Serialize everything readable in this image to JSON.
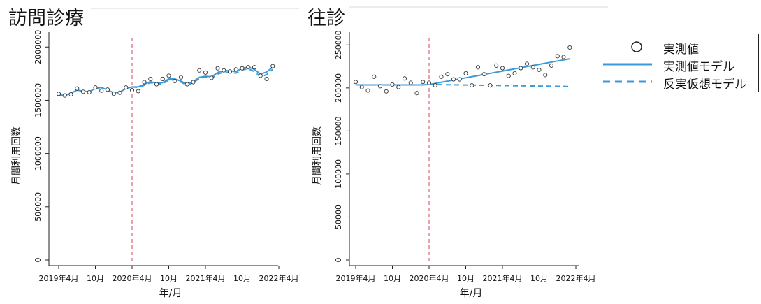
{
  "chart_data": [
    {
      "type": "scatter",
      "title": "訪問診療",
      "xlabel": "年/月",
      "ylabel": "月間利用回数",
      "x_tick_labels": [
        "2019年4月",
        "10月",
        "2020年4月",
        "10月",
        "2021年4月",
        "10月",
        "2022年4月"
      ],
      "y_tick_labels": [
        "0",
        "500000",
        "1000000",
        "1500000",
        "2000000"
      ],
      "ylim": [
        0,
        2100000
      ],
      "intervention_month_index": 12,
      "series": [
        {
          "name": "実測値",
          "values": [
            1560000,
            1545000,
            1555000,
            1610000,
            1580000,
            1575000,
            1620000,
            1590000,
            1600000,
            1560000,
            1570000,
            1620000,
            1595000,
            1585000,
            1670000,
            1700000,
            1650000,
            1700000,
            1730000,
            1680000,
            1715000,
            1650000,
            1670000,
            1780000,
            1760000,
            1710000,
            1800000,
            1780000,
            1770000,
            1790000,
            1800000,
            1810000,
            1810000,
            1730000,
            1700000,
            1820000
          ]
        },
        {
          "name": "実測値モデル",
          "values": [
            1550000,
            1545000,
            1565000,
            1595000,
            1585000,
            1580000,
            1610000,
            1620000,
            1595000,
            1570000,
            1575000,
            1610000,
            1625000,
            1625000,
            1650000,
            1675000,
            1660000,
            1665000,
            1700000,
            1700000,
            1680000,
            1650000,
            1675000,
            1715000,
            1725000,
            1720000,
            1760000,
            1780000,
            1775000,
            1770000,
            1800000,
            1810000,
            1790000,
            1745000,
            1765000,
            1810000
          ]
        },
        {
          "name": "反実仮想モデル",
          "values": [
            null,
            null,
            null,
            null,
            null,
            null,
            null,
            null,
            null,
            null,
            null,
            null,
            1625000,
            1620000,
            1640000,
            1665000,
            1650000,
            1655000,
            1690000,
            1690000,
            1670000,
            1640000,
            1665000,
            1705000,
            1715000,
            1705000,
            1745000,
            1765000,
            1760000,
            1755000,
            1785000,
            1795000,
            1770000,
            1720000,
            1740000,
            1790000
          ]
        }
      ]
    },
    {
      "type": "scatter",
      "title": "往診",
      "xlabel": "年/月",
      "ylabel": "月間利用回数",
      "x_tick_labels": [
        "2019年4月",
        "10月",
        "2020年4月",
        "10月",
        "2021年4月",
        "10月",
        "2022年4月"
      ],
      "y_tick_labels": [
        "0",
        "50000",
        "100000",
        "150000",
        "200000",
        "250000"
      ],
      "ylim": [
        0,
        260000
      ],
      "intervention_month_index": 12,
      "series": [
        {
          "name": "実測値",
          "values": [
            207000,
            201000,
            197000,
            213000,
            202000,
            196000,
            204000,
            201000,
            211000,
            206000,
            194000,
            207000,
            206000,
            203000,
            213000,
            216000,
            210000,
            210000,
            217000,
            203000,
            224000,
            216000,
            203000,
            226000,
            223000,
            214000,
            217000,
            223000,
            228000,
            224000,
            221000,
            215000,
            226000,
            237000,
            236000,
            247000
          ]
        },
        {
          "name": "実測値モデル",
          "values": [
            203500,
            203500,
            203500,
            203500,
            203500,
            203500,
            203500,
            203500,
            203500,
            203500,
            203500,
            203500,
            204000,
            205300,
            206600,
            207900,
            209200,
            210500,
            211800,
            213100,
            214400,
            215700,
            217000,
            218300,
            219600,
            220900,
            222200,
            223500,
            224800,
            226100,
            227400,
            228700,
            230000,
            231300,
            232600,
            233900
          ]
        },
        {
          "name": "反実仮想モデル",
          "values": [
            null,
            null,
            null,
            null,
            null,
            null,
            null,
            null,
            null,
            null,
            null,
            null,
            204000,
            203900,
            203800,
            203700,
            203600,
            203500,
            203400,
            203300,
            203200,
            203100,
            203000,
            202900,
            202800,
            202700,
            202600,
            202500,
            202400,
            202300,
            202200,
            202100,
            202000,
            201900,
            201800,
            201700
          ]
        }
      ]
    }
  ],
  "legend": {
    "items": [
      {
        "label": "実測値",
        "icon": "open-circle"
      },
      {
        "label": "実測値モデル",
        "icon": "solid-line"
      },
      {
        "label": "反実仮想モデル",
        "icon": "dashed-line"
      }
    ]
  },
  "colors": {
    "model_line": "#3b9ad9",
    "intervention_line": "#e0707f",
    "marker": "#333333",
    "axis": "#222222"
  }
}
